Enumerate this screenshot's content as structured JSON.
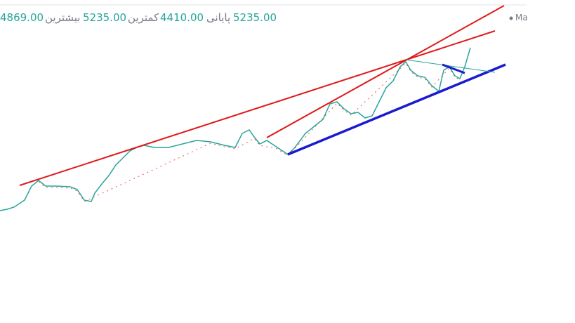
{
  "header": {
    "open_value": "4869.00",
    "high_label": "بیشترین",
    "high_value": "5235.00",
    "low_label": "کمترین",
    "low_value": "4410.00",
    "close_label": "پایانی",
    "close_value": "5235.00",
    "legend": "Ma"
  }
}
